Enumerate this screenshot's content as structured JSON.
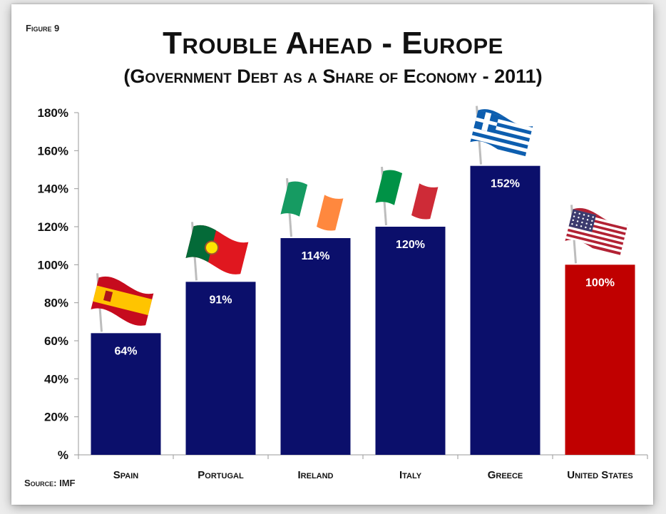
{
  "figure_label": "Figure 9",
  "source": "Source: IMF",
  "colors": {
    "bar_default": "#0b0f6b",
    "bar_highlight": "#c00000",
    "axis": "#9a9a9a"
  },
  "chart_data": {
    "type": "bar",
    "title": "Trouble Ahead - Europe",
    "subtitle": "(Government Debt as a Share of Economy - 2011)",
    "categories": [
      "Spain",
      "Portugal",
      "Ireland",
      "Italy",
      "Greece",
      "United States"
    ],
    "values": [
      64,
      91,
      114,
      120,
      152,
      100
    ],
    "data_labels": [
      "64%",
      "91%",
      "114%",
      "120%",
      "152%",
      "100%"
    ],
    "highlight_category": "United States",
    "flag_icons": [
      "spain-flag-icon",
      "portugal-flag-icon",
      "ireland-flag-icon",
      "italy-flag-icon",
      "greece-flag-icon",
      "usa-flag-icon"
    ],
    "ylim": [
      0,
      180
    ],
    "yticks": [
      0,
      20,
      40,
      60,
      80,
      100,
      120,
      140,
      160,
      180
    ],
    "ytick_labels": [
      "%",
      "20%",
      "40%",
      "60%",
      "80%",
      "100%",
      "120%",
      "140%",
      "160%",
      "180%"
    ],
    "xlabel": "",
    "ylabel": "",
    "grid": false,
    "legend": "none"
  }
}
